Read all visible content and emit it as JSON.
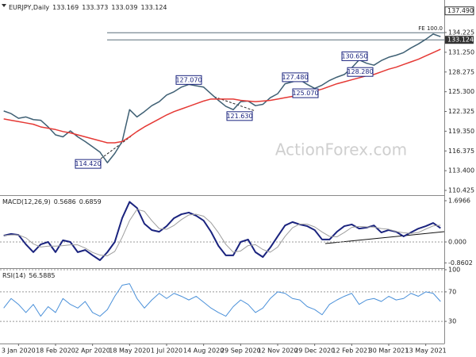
{
  "chart_data": [
    {
      "type": "line",
      "title": "EURJPY,Daily",
      "header_values": [
        133.169,
        133.373,
        133.039,
        133.124
      ],
      "series": [
        {
          "color": "#3f6074",
          "values": [
            122.4,
            122.0,
            121.3,
            121.5,
            121.1,
            121.0,
            120.0,
            118.8,
            118.5,
            119.4,
            118.5,
            117.8,
            117.0,
            116.2,
            114.6,
            116.0,
            117.8,
            122.6,
            121.5,
            122.3,
            123.2,
            123.8,
            124.8,
            125.3,
            126.0,
            126.4,
            126.2,
            126.0,
            125.0,
            124.0,
            123.1,
            122.6,
            123.8,
            123.9,
            123.2,
            123.4,
            124.4,
            125.0,
            126.5,
            126.8,
            127.1,
            126.4,
            125.8,
            126.3,
            127.0,
            127.5,
            127.9,
            128.9,
            130.1,
            129.6,
            129.3,
            130.0,
            130.5,
            130.8,
            131.2,
            131.9,
            132.5,
            133.2,
            134.0,
            133.6
          ]
        },
        {
          "color": "#e53935",
          "values": [
            121.2,
            121.0,
            120.8,
            120.6,
            120.4,
            120.0,
            119.8,
            119.6,
            119.3,
            119.1,
            118.8,
            118.5,
            118.2,
            117.9,
            117.6,
            117.6,
            117.8,
            118.5,
            119.3,
            120.0,
            120.6,
            121.2,
            121.8,
            122.3,
            122.7,
            123.1,
            123.5,
            123.9,
            124.2,
            124.2,
            124.2,
            124.2,
            124.0,
            123.9,
            123.8,
            123.9,
            124.0,
            124.2,
            124.4,
            124.6,
            124.8,
            125.1,
            125.4,
            125.7,
            126.1,
            126.5,
            126.8,
            127.1,
            127.4,
            127.7,
            127.9,
            128.3,
            128.7,
            129.0,
            129.4,
            129.8,
            130.2,
            130.7,
            131.2,
            131.7
          ]
        }
      ],
      "ylim": [
        109.71,
        138.65
      ],
      "yticks": [
        134.225,
        {
          "value": 131.25,
          "label": "131.250"
        },
        128.275,
        {
          "value": 125.3,
          "label": "125.300"
        },
        122.325,
        {
          "value": 119.35,
          "label": "119.350"
        },
        116.375,
        {
          "value": 113.4,
          "label": "113.400"
        },
        110.425
      ],
      "levels": [
        {
          "value": 137.49,
          "label": "137.490"
        }
      ],
      "last_price": 133.124,
      "projection": {
        "label": "FE 100.0",
        "value": 134.2
      },
      "annotations": [
        {
          "value": 114.42,
          "label": "114.420"
        },
        {
          "value": 127.07,
          "label": "127.070"
        },
        {
          "value": 121.63,
          "label": "121.630"
        },
        {
          "value": 127.48,
          "label": "127.480"
        },
        {
          "value": 125.07,
          "label": "125.070"
        },
        {
          "value": 130.65,
          "label": "130.650"
        },
        {
          "value": 128.28,
          "label": "128.280"
        }
      ],
      "watermark": "ActionForex.com"
    },
    {
      "type": "line",
      "title": "MACD(12,26,9)",
      "header_values": [
        0.5686,
        0.6859
      ],
      "series": [
        {
          "color": "#1a237e",
          "width": 2,
          "values": [
            0.26,
            0.33,
            0.29,
            -0.1,
            -0.42,
            -0.1,
            0.0,
            -0.42,
            0.07,
            0.0,
            -0.42,
            -0.33,
            -0.55,
            -0.75,
            -0.42,
            0.0,
            0.98,
            1.65,
            1.4,
            0.75,
            0.49,
            0.42,
            0.65,
            0.98,
            1.14,
            1.21,
            1.08,
            0.88,
            0.42,
            -0.16,
            -0.55,
            -0.55,
            0.0,
            0.1,
            -0.42,
            -0.62,
            -0.23,
            0.23,
            0.68,
            0.82,
            0.72,
            0.65,
            0.49,
            0.1,
            0.1,
            0.42,
            0.65,
            0.72,
            0.55,
            0.59,
            0.68,
            0.39,
            0.49,
            0.42,
            0.23,
            0.39,
            0.55,
            0.65,
            0.78,
            0.57
          ]
        },
        {
          "color": "#9e9e9e",
          "width": 1,
          "values": [
            0.26,
            0.29,
            0.29,
            0.17,
            -0.08,
            -0.21,
            -0.17,
            -0.17,
            -0.15,
            -0.12,
            -0.12,
            -0.25,
            -0.43,
            -0.54,
            -0.57,
            -0.39,
            0.19,
            0.88,
            1.34,
            1.26,
            0.88,
            0.55,
            0.52,
            0.68,
            0.92,
            1.11,
            1.14,
            1.06,
            0.79,
            0.38,
            -0.1,
            -0.42,
            -0.37,
            -0.15,
            -0.11,
            -0.31,
            -0.42,
            -0.21,
            0.23,
            0.58,
            0.74,
            0.73,
            0.62,
            0.41,
            0.23,
            0.21,
            0.39,
            0.6,
            0.64,
            0.62,
            0.61,
            0.55,
            0.52,
            0.43,
            0.38,
            0.35,
            0.39,
            0.53,
            0.66,
            0.69
          ]
        }
      ],
      "ylim": [
        -1.077,
        1.86
      ],
      "yticks": [
        1.6966,
        {
          "value": 0,
          "label": "0.000"
        },
        -0.8602
      ],
      "zero_line": true
    },
    {
      "type": "line",
      "title": "RSI(14)",
      "header_values": [
        56.5885
      ],
      "series": [
        {
          "color": "#4a90d9",
          "width": 1,
          "values": [
            48,
            61,
            53,
            42,
            53,
            37,
            50,
            42,
            61,
            53,
            48,
            57,
            42,
            37,
            46,
            64,
            79,
            81,
            61,
            48,
            59,
            68,
            61,
            68,
            64,
            59,
            64,
            56,
            48,
            42,
            37,
            50,
            59,
            53,
            42,
            48,
            61,
            70,
            68,
            61,
            59,
            50,
            46,
            39,
            53,
            59,
            64,
            68,
            53,
            59,
            61,
            57,
            64,
            59,
            61,
            68,
            64,
            70,
            68,
            57
          ]
        }
      ],
      "ylim": [
        0,
        100
      ],
      "yticks": [
        100,
        70,
        30
      ],
      "grid": "dotted",
      "categories": [
        null,
        null,
        "3 Jan 2020",
        null,
        null,
        null,
        null,
        "18 Feb 2020",
        null,
        null,
        null,
        null,
        "2 Apr 2020",
        null,
        null,
        null,
        null,
        "18 May 2020",
        null,
        null,
        null,
        null,
        "1 Jul 2020",
        null,
        null,
        null,
        null,
        "14 Aug 2020",
        null,
        null,
        null,
        null,
        "29 Sep 2020",
        null,
        null,
        null,
        null,
        "12 Nov 2020",
        null,
        null,
        null,
        null,
        "29 Dec 2020",
        null,
        null,
        null,
        null,
        "12 Feb 2021",
        null,
        null,
        null,
        null,
        "30 Mar 2021",
        null,
        null,
        null,
        null,
        "13 May 2021",
        null,
        null
      ]
    }
  ]
}
